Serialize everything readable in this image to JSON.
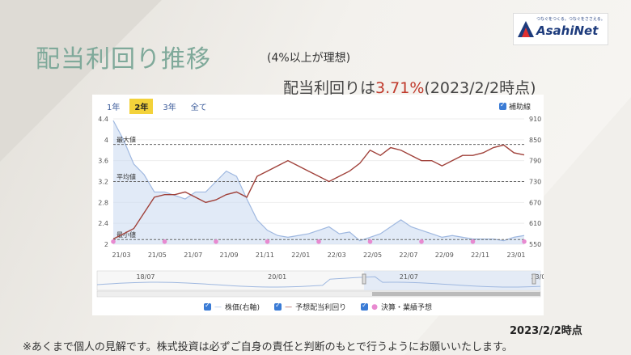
{
  "logo": {
    "tagline": "つなぐをつくる。つなぐをささえる。",
    "name": "AsahiNet"
  },
  "header": {
    "title": "配当利回り推移",
    "subtitle": "(4%以上が理想)",
    "yield_prefix": "配当利回りは",
    "yield_value": "3.71%",
    "yield_suffix": "(2023/2/2時点)"
  },
  "chart_controls": {
    "tabs": [
      "1年",
      "2年",
      "3年",
      "全て"
    ],
    "active_tab": "2年",
    "aux_line_label": "補助線"
  },
  "legend": {
    "price": "株価(右軸)",
    "yield": "予想配当利回り",
    "events": "決算・業績予想"
  },
  "colors": {
    "price_line": "#9fb8e0",
    "price_fill": "#c9d8f0",
    "yield_line": "#a0413a",
    "event_marker": "#e88ad0",
    "checkbox": "#3a7bd5"
  },
  "chart_data": {
    "type": "line",
    "x_tick_labels": [
      "21/03",
      "21/05",
      "21/07",
      "21/09",
      "21/11",
      "22/01",
      "22/03",
      "22/05",
      "22/07",
      "22/09",
      "22/11",
      "23/01"
    ],
    "navigator_labels": [
      "18/07",
      "20/01",
      "21/07",
      "23/01"
    ],
    "y_left": {
      "ticks": [
        "4.4",
        "4",
        "3.6",
        "3.2",
        "2.8",
        "2.4",
        "2"
      ],
      "range": [
        2,
        4.4
      ]
    },
    "y_right": {
      "ticks": [
        "910",
        "850",
        "790",
        "730",
        "670",
        "610",
        "550"
      ],
      "range": [
        550,
        910
      ]
    },
    "reference_lines": [
      {
        "label": "最大値",
        "value": 3.91
      },
      {
        "label": "平均値",
        "value": 3.2
      },
      {
        "label": "最小値",
        "value": 2.09
      }
    ],
    "series": [
      {
        "name": "予想配当利回り",
        "axis": "left",
        "values": [
          2.1,
          2.2,
          2.3,
          2.6,
          2.9,
          2.95,
          2.95,
          3.0,
          2.9,
          2.8,
          2.85,
          2.95,
          3.0,
          2.9,
          3.3,
          3.4,
          3.5,
          3.6,
          3.5,
          3.4,
          3.3,
          3.2,
          3.3,
          3.4,
          3.55,
          3.8,
          3.7,
          3.85,
          3.8,
          3.7,
          3.6,
          3.6,
          3.5,
          3.6,
          3.7,
          3.7,
          3.75,
          3.85,
          3.9,
          3.75,
          3.71
        ]
      },
      {
        "name": "株価(右軸)",
        "axis": "right",
        "values": [
          905,
          850,
          780,
          750,
          700,
          700,
          690,
          680,
          700,
          700,
          730,
          760,
          745,
          680,
          620,
          590,
          575,
          570,
          575,
          580,
          590,
          600,
          580,
          585,
          560,
          570,
          580,
          600,
          620,
          600,
          590,
          580,
          570,
          575,
          570,
          565,
          565,
          565,
          560,
          570,
          575
        ]
      }
    ],
    "events_y": 2.05,
    "events_x_index": [
      0,
      5,
      10,
      15,
      20,
      25,
      30,
      35,
      40
    ]
  },
  "footer": {
    "date": "2023/2/2時点",
    "disclaimer": "※あくまで個人の見解です。株式投資は必ずご自身の責任と判断のもとで行うようにお願いいたします。"
  }
}
